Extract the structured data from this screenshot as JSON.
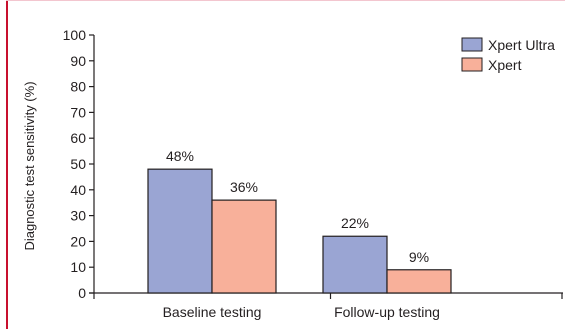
{
  "chart_data": {
    "type": "bar",
    "categories": [
      "Baseline testing",
      "Follow-up testing"
    ],
    "series": [
      {
        "name": "Xpert Ultra",
        "color": "#9aa5d3",
        "values": [
          48,
          22
        ],
        "labels": [
          "48%",
          "22%"
        ]
      },
      {
        "name": "Xpert",
        "color": "#f8b09a",
        "values": [
          36,
          9
        ],
        "labels": [
          "36%",
          "9%"
        ]
      }
    ],
    "ylabel": "Diagnostic test sensitivity (%)",
    "xlabel": "",
    "ylim": [
      0,
      100
    ],
    "yticks": [
      0,
      10,
      20,
      30,
      40,
      50,
      60,
      70,
      80,
      90,
      100
    ],
    "grid": false,
    "legend_position": "top-right"
  },
  "colors": {
    "frame_accent": "#c8102e",
    "axis": "#231f20",
    "bar_outline": "#231f20"
  }
}
